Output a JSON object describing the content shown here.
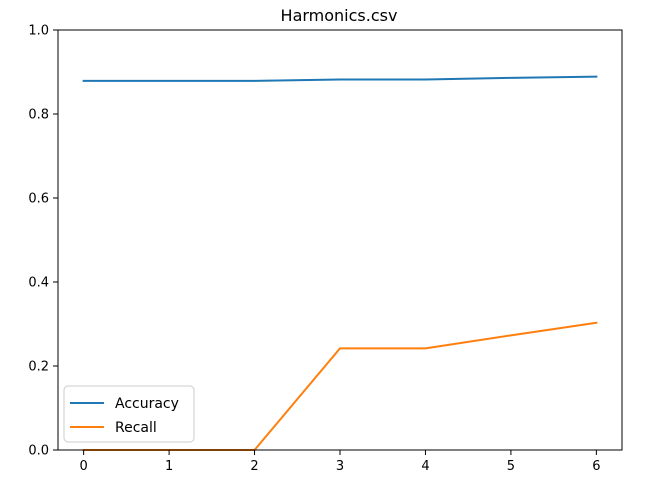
{
  "chart_data": {
    "type": "line",
    "title": "Harmonics.csv",
    "xlabel": "",
    "ylabel": "",
    "x": [
      0,
      1,
      2,
      3,
      4,
      5,
      6
    ],
    "xticks": [
      "0",
      "1",
      "2",
      "3",
      "4",
      "5",
      "6"
    ],
    "xlim": [
      -0.3,
      6.3
    ],
    "ylim": [
      0,
      1
    ],
    "yticks": [
      "0.0",
      "0.2",
      "0.4",
      "0.6",
      "0.8",
      "1.0"
    ],
    "grid": false,
    "legend_position": "lower-left",
    "series": [
      {
        "name": "Accuracy",
        "color": "#1f77b4",
        "values": [
          0.879,
          0.879,
          0.879,
          0.882,
          0.882,
          0.886,
          0.889
        ]
      },
      {
        "name": "Recall",
        "color": "#ff7f0e",
        "values": [
          0.0,
          0.0,
          0.0,
          0.242,
          0.242,
          0.273,
          0.303
        ]
      }
    ]
  }
}
